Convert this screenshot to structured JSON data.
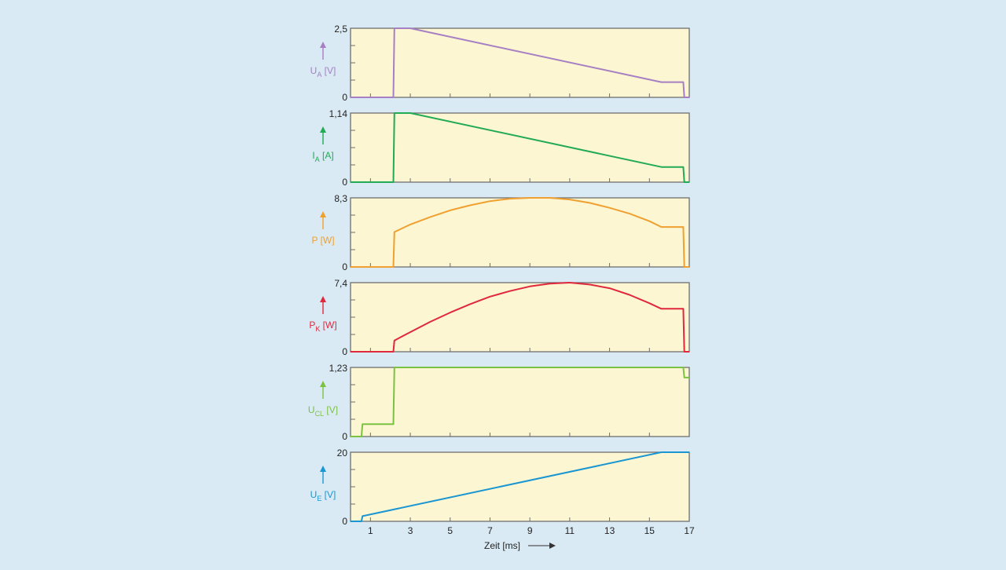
{
  "figure": {
    "xlabel": "Zeit [ms]",
    "xticks": [
      1,
      3,
      5,
      7,
      9,
      11,
      13,
      15,
      17
    ],
    "xlim": [
      0,
      17
    ],
    "panel_bg": "#fcf6d2",
    "frame_color": "#6e6e6e",
    "page_bg": "#d9eaf5"
  },
  "chart_data": [
    {
      "type": "line",
      "ylabel": {
        "main": "U",
        "sub": "A",
        "unit": " [V]"
      },
      "ylim": [
        0,
        2.5
      ],
      "ytick_labels": [
        "0",
        "2,5"
      ],
      "color": "#a67fc4",
      "x": [
        0,
        2.15,
        2.2,
        3.0,
        15.6,
        16.7,
        16.75,
        17
      ],
      "y": [
        0,
        0,
        2.5,
        2.5,
        0.55,
        0.55,
        0,
        0
      ]
    },
    {
      "type": "line",
      "ylabel": {
        "main": "I",
        "sub": "A",
        "unit": " [A]"
      },
      "ylim": [
        0,
        1.14
      ],
      "ytick_labels": [
        "0",
        "1,14"
      ],
      "color": "#22aa55",
      "x": [
        0,
        2.15,
        2.2,
        3.0,
        15.6,
        16.7,
        16.75,
        17
      ],
      "y": [
        0,
        0,
        1.14,
        1.14,
        0.25,
        0.25,
        0,
        0
      ]
    },
    {
      "type": "line",
      "ylabel": {
        "main": "P",
        "sub": "",
        "unit": " [W]"
      },
      "ylim": [
        0,
        8.3
      ],
      "ytick_labels": [
        "0",
        "8,3"
      ],
      "color": "#f0a030",
      "x": [
        0,
        2.15,
        2.2,
        3,
        4,
        5,
        6,
        7,
        8,
        9,
        10,
        11,
        12,
        13,
        14,
        15,
        15.6,
        16.7,
        16.75,
        17
      ],
      "y": [
        0,
        0,
        4.2,
        5.1,
        6.0,
        6.8,
        7.4,
        7.9,
        8.2,
        8.3,
        8.3,
        8.1,
        7.7,
        7.1,
        6.4,
        5.5,
        4.8,
        4.8,
        0,
        0
      ]
    },
    {
      "type": "line",
      "ylabel": {
        "main": "P",
        "sub": "K",
        "unit": " [W]"
      },
      "ylim": [
        0,
        7.4
      ],
      "ytick_labels": [
        "0",
        "7,4"
      ],
      "color": "#e0283c",
      "x": [
        0,
        2.15,
        2.2,
        3,
        4,
        5,
        6,
        7,
        8,
        9,
        10,
        11,
        12,
        13,
        14,
        15,
        15.6,
        16.7,
        16.75,
        17
      ],
      "y": [
        0,
        0,
        1.2,
        2.1,
        3.2,
        4.2,
        5.1,
        5.9,
        6.5,
        7.0,
        7.3,
        7.4,
        7.2,
        6.8,
        6.1,
        5.2,
        4.6,
        4.6,
        0,
        0
      ]
    },
    {
      "type": "line",
      "ylabel": {
        "main": "U",
        "sub": "CL",
        "unit": " [V]"
      },
      "ylim": [
        0,
        1.23
      ],
      "ytick_labels": [
        "0",
        "1,23"
      ],
      "color": "#7cc242",
      "x": [
        0,
        0.55,
        0.6,
        2.15,
        2.2,
        16.7,
        16.75,
        17
      ],
      "y": [
        0,
        0,
        0.22,
        0.22,
        1.23,
        1.23,
        1.05,
        1.05
      ]
    },
    {
      "type": "line",
      "ylabel": {
        "main": "U",
        "sub": "E",
        "unit": " [V]"
      },
      "ylim": [
        0,
        20
      ],
      "ytick_labels": [
        "0",
        "20"
      ],
      "color": "#1a96d2",
      "x": [
        0,
        0.55,
        0.6,
        15.6,
        17
      ],
      "y": [
        0,
        0,
        1.5,
        20,
        20
      ]
    }
  ]
}
